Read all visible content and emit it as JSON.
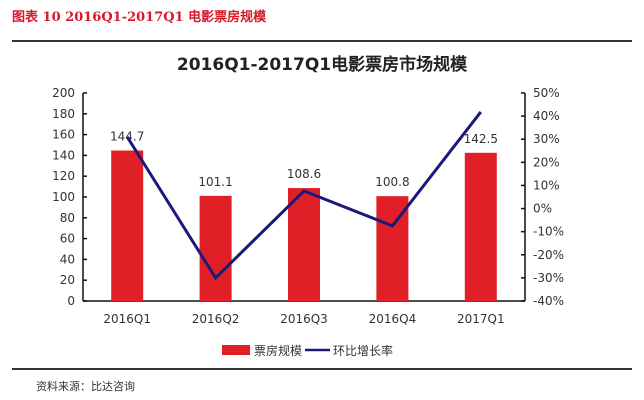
{
  "figure": {
    "caption": "图表 10 2016Q1-2017Q1 电影票房规模",
    "source": "资料来源：比达咨询"
  },
  "chart_data": {
    "type": "bar",
    "title": "2016Q1-2017Q1电影票房市场规模",
    "categories": [
      "2016Q1",
      "2016Q2",
      "2016Q3",
      "2016Q4",
      "2017Q1"
    ],
    "series": [
      {
        "name": "票房规模",
        "type": "bar",
        "axis": "left",
        "color": "#e01f26",
        "values": [
          144.7,
          101.1,
          108.6,
          100.8,
          142.5
        ]
      },
      {
        "name": "环比增长率",
        "type": "line",
        "axis": "right",
        "color": "#1a1a7a",
        "values": [
          31.0,
          -30.0,
          7.6,
          -7.5,
          41.8
        ],
        "unit": "%"
      }
    ],
    "left_axis": {
      "ylim": [
        0,
        200
      ],
      "ticks": [
        "0",
        "20",
        "40",
        "60",
        "80",
        "100",
        "120",
        "140",
        "160",
        "180",
        "200"
      ]
    },
    "right_axis": {
      "ylim": [
        -40,
        50
      ],
      "ticks": [
        "-40%",
        "-30%",
        "-20%",
        "-10%",
        "0%",
        "10%",
        "20%",
        "30%",
        "40%",
        "50%"
      ]
    },
    "xlabel": "",
    "ylabel": "",
    "legend_position": "bottom",
    "grid": false
  }
}
